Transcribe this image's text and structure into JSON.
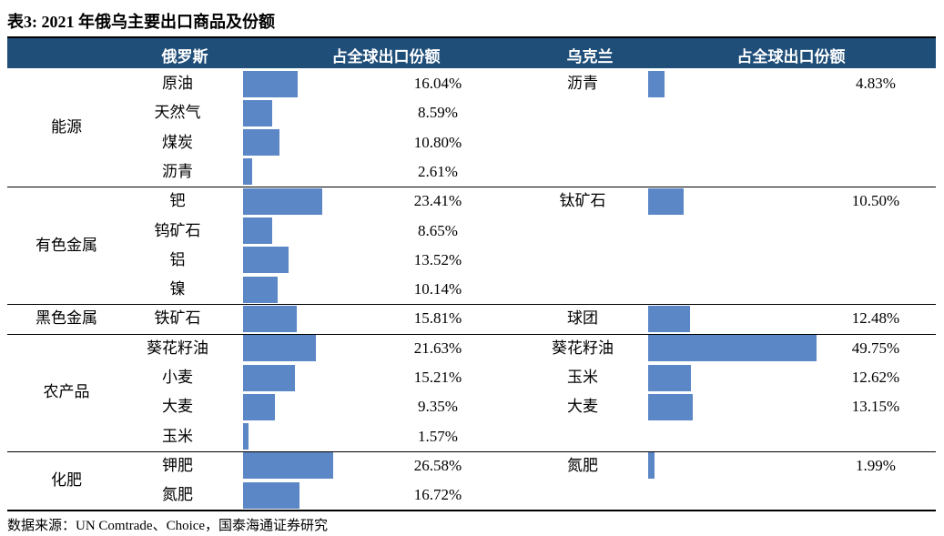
{
  "title": "表3:  2021 年俄乌主要出口商品及份额",
  "source": "数据来源：UN Comtrade、Choice，国泰海通证券研究",
  "header": {
    "russia": "俄罗斯",
    "russia_share": "占全球出口份额",
    "ukraine": "乌克兰",
    "ukraine_share": "占全球出口份额"
  },
  "colors": {
    "header_bg": "#1f4e79",
    "bar": "#5b87c6"
  },
  "chart_data": [
    {
      "type": "bar",
      "orientation": "horizontal",
      "title": "俄罗斯",
      "ylabel": "占全球出口份额",
      "unit": "%",
      "groups": [
        {
          "name": "能源",
          "items": [
            {
              "label": "原油",
              "value": 16.04,
              "text": "16.04%"
            },
            {
              "label": "天然气",
              "value": 8.59,
              "text": "8.59%"
            },
            {
              "label": "煤炭",
              "value": 10.8,
              "text": "10.80%"
            },
            {
              "label": "沥青",
              "value": 2.61,
              "text": "2.61%"
            }
          ]
        },
        {
          "name": "有色金属",
          "items": [
            {
              "label": "钯",
              "value": 23.41,
              "text": "23.41%"
            },
            {
              "label": "钨矿石",
              "value": 8.65,
              "text": "8.65%"
            },
            {
              "label": "铝",
              "value": 13.52,
              "text": "13.52%"
            },
            {
              "label": "镍",
              "value": 10.14,
              "text": "10.14%"
            }
          ]
        },
        {
          "name": "黑色金属",
          "items": [
            {
              "label": "铁矿石",
              "value": 15.81,
              "text": "15.81%"
            }
          ]
        },
        {
          "name": "农产品",
          "items": [
            {
              "label": "葵花籽油",
              "value": 21.63,
              "text": "21.63%"
            },
            {
              "label": "小麦",
              "value": 15.21,
              "text": "15.21%"
            },
            {
              "label": "大麦",
              "value": 9.35,
              "text": "9.35%"
            },
            {
              "label": "玉米",
              "value": 1.57,
              "text": "1.57%"
            }
          ]
        },
        {
          "name": "化肥",
          "items": [
            {
              "label": "钾肥",
              "value": 26.58,
              "text": "26.58%"
            },
            {
              "label": "氮肥",
              "value": 16.72,
              "text": "16.72%"
            }
          ]
        }
      ]
    },
    {
      "type": "bar",
      "orientation": "horizontal",
      "title": "乌克兰",
      "ylabel": "占全球出口份额",
      "unit": "%",
      "groups": [
        {
          "name": "能源",
          "items": [
            {
              "label": "沥青",
              "value": 4.83,
              "text": "4.83%"
            }
          ]
        },
        {
          "name": "有色金属",
          "items": [
            {
              "label": "钛矿石",
              "value": 10.5,
              "text": "10.50%"
            }
          ]
        },
        {
          "name": "黑色金属",
          "items": [
            {
              "label": "球团",
              "value": 12.48,
              "text": "12.48%"
            }
          ]
        },
        {
          "name": "农产品",
          "items": [
            {
              "label": "葵花籽油",
              "value": 49.75,
              "text": "49.75%"
            },
            {
              "label": "玉米",
              "value": 12.62,
              "text": "12.62%"
            },
            {
              "label": "大麦",
              "value": 13.15,
              "text": "13.15%"
            }
          ]
        },
        {
          "name": "化肥",
          "items": [
            {
              "label": "氮肥",
              "value": 1.99,
              "text": "1.99%"
            }
          ]
        }
      ]
    }
  ]
}
